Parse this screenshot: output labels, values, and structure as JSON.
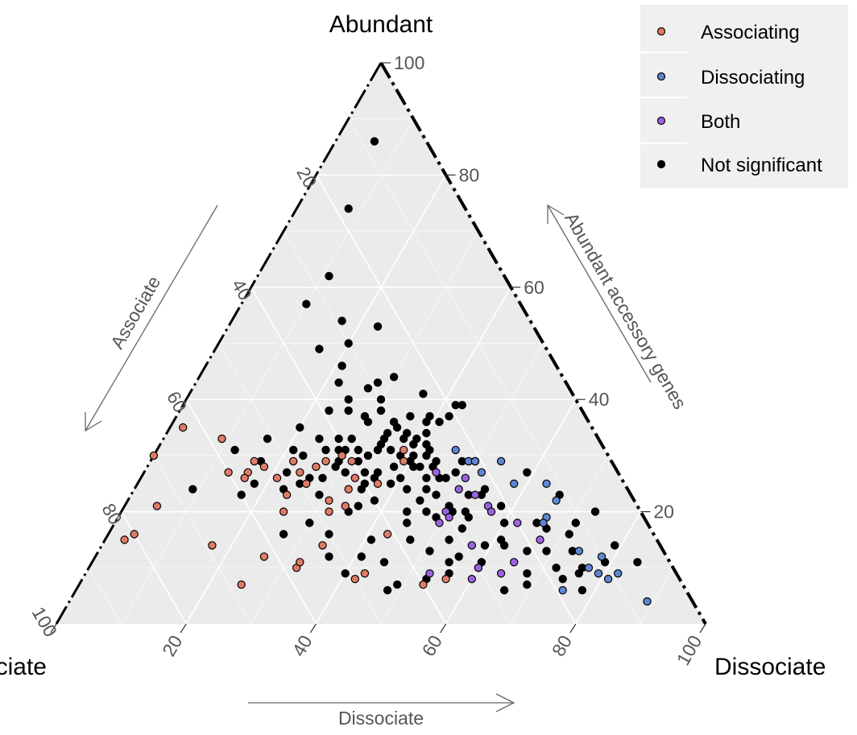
{
  "chart_data": {
    "type": "ternary-scatter",
    "vertex_labels": {
      "top": "Abundant",
      "left": "Associate",
      "right": "Dissociate"
    },
    "axis_titles": {
      "left": "Associate",
      "right": "Abundant accessory genes",
      "bottom": "Dissociate"
    },
    "ticks": [
      20,
      40,
      60,
      80,
      100
    ],
    "tick_labels": [
      "20",
      "40",
      "60",
      "80",
      "100"
    ],
    "grid": true,
    "legend": {
      "position": "top-right",
      "entries": [
        {
          "key": "associating",
          "label": "Associating",
          "color": "#e07b68"
        },
        {
          "key": "dissociating",
          "label": "Dissociating",
          "color": "#5f86d1"
        },
        {
          "key": "both",
          "label": "Both",
          "color": "#9b63e0"
        },
        {
          "key": "not_significant",
          "label": "Not significant",
          "color": "#000000"
        }
      ]
    },
    "series": [
      {
        "name": "Not significant",
        "color": "#000000",
        "points": [
          [
            86,
            8,
            6
          ],
          [
            74,
            18,
            8
          ],
          [
            62,
            27,
            11
          ],
          [
            57,
            33,
            10
          ],
          [
            54,
            29,
            17
          ],
          [
            49,
            35,
            16
          ],
          [
            50,
            30,
            20
          ],
          [
            53,
            24,
            23
          ],
          [
            46,
            33,
            21
          ],
          [
            43,
            35,
            22
          ],
          [
            43,
            29,
            28
          ],
          [
            42,
            31,
            27
          ],
          [
            44,
            26,
            30
          ],
          [
            40,
            30,
            30
          ],
          [
            38,
            36,
            26
          ],
          [
            41,
            23,
            36
          ],
          [
            39,
            18,
            43
          ],
          [
            38,
            39,
            23
          ],
          [
            39,
            19,
            42
          ],
          [
            36,
            25,
            39
          ],
          [
            40,
            35,
            25
          ],
          [
            30,
            30,
            40
          ],
          [
            37,
            34,
            29
          ],
          [
            37,
            27,
            36
          ],
          [
            34,
            32,
            34
          ],
          [
            33,
            30,
            37
          ],
          [
            32,
            27,
            41
          ],
          [
            33,
            40,
            27
          ],
          [
            38,
            31,
            31
          ],
          [
            37,
            24,
            39
          ],
          [
            37,
            21,
            42
          ],
          [
            31,
            41,
            28
          ],
          [
            35,
            45,
            20
          ],
          [
            33,
            43,
            24
          ],
          [
            28,
            43,
            29
          ],
          [
            33,
            33,
            34
          ],
          [
            29,
            42,
            29
          ],
          [
            21,
            43,
            36
          ],
          [
            27,
            39,
            34
          ],
          [
            25,
            36,
            39
          ],
          [
            30,
            37,
            33
          ],
          [
            36,
            30,
            34
          ],
          [
            25,
            50,
            25
          ],
          [
            24,
            41,
            35
          ],
          [
            31,
            48,
            21
          ],
          [
            31,
            33,
            36
          ],
          [
            36,
            34,
            30
          ],
          [
            26,
            30,
            44
          ],
          [
            26,
            34,
            40
          ],
          [
            22,
            40,
            38
          ],
          [
            28,
            31,
            41
          ],
          [
            27,
            37,
            36
          ],
          [
            30,
            32,
            38
          ],
          [
            24,
            34,
            42
          ],
          [
            19,
            32,
            49
          ],
          [
            20,
            36,
            44
          ],
          [
            23,
            25,
            52
          ],
          [
            21,
            29,
            50
          ],
          [
            19,
            27,
            54
          ],
          [
            23,
            23,
            54
          ],
          [
            24,
            22,
            54
          ],
          [
            27,
            25,
            48
          ],
          [
            29,
            27,
            44
          ],
          [
            29,
            23,
            48
          ],
          [
            32,
            29,
            39
          ],
          [
            26,
            46,
            28
          ],
          [
            28,
            34,
            38
          ],
          [
            30,
            28,
            42
          ],
          [
            27,
            42,
            31
          ],
          [
            30,
            47,
            23
          ],
          [
            33,
            51,
            16
          ],
          [
            29,
            54,
            17
          ],
          [
            31,
            57,
            12
          ],
          [
            25,
            57,
            18
          ],
          [
            24,
            67,
            9
          ],
          [
            23,
            60,
            17
          ],
          [
            18,
            52,
            30
          ],
          [
            20,
            45,
            35
          ],
          [
            15,
            44,
            41
          ],
          [
            12,
            47,
            41
          ],
          [
            16,
            50,
            34
          ],
          [
            16,
            57,
            27
          ],
          [
            12,
            52,
            36
          ],
          [
            11,
            44,
            45
          ],
          [
            15,
            38,
            47
          ],
          [
            13,
            36,
            51
          ],
          [
            15,
            32,
            53
          ],
          [
            11,
            34,
            55
          ],
          [
            18,
            37,
            45
          ],
          [
            20,
            33,
            47
          ],
          [
            17,
            29,
            54
          ],
          [
            14,
            24,
            62
          ],
          [
            13,
            21,
            66
          ],
          [
            11,
            29,
            60
          ],
          [
            10,
            30,
            60
          ],
          [
            9,
            23,
            68
          ],
          [
            10,
            18,
            72
          ],
          [
            13,
            14,
            73
          ],
          [
            9,
            15,
            76
          ],
          [
            16,
            13,
            71
          ],
          [
            17,
            16,
            67
          ],
          [
            13,
            18,
            69
          ],
          [
            12,
            32,
            56
          ],
          [
            8,
            39,
            53
          ],
          [
            7,
            44,
            49
          ],
          [
            9,
            35,
            56
          ],
          [
            6,
            46,
            48
          ],
          [
            6,
            28,
            66
          ],
          [
            7,
            24,
            69
          ],
          [
            8,
            18,
            74
          ],
          [
            10,
            14,
            76
          ],
          [
            6,
            16,
            78
          ],
          [
            14,
            27,
            59
          ],
          [
            15,
            24,
            61
          ],
          [
            20,
            27,
            53
          ],
          [
            18,
            22,
            60
          ],
          [
            21,
            21,
            58
          ],
          [
            18,
            17,
            65
          ],
          [
            18,
            11,
            71
          ],
          [
            11,
            10,
            79
          ],
          [
            14,
            7,
            79
          ],
          [
            20,
            7,
            73
          ],
          [
            11,
            5,
            84
          ],
          [
            23,
            11,
            66
          ],
          [
            27,
            14,
            59
          ],
          [
            9,
            51,
            40
          ],
          [
            27,
            51,
            22
          ],
          [
            22,
            33,
            45
          ],
          [
            26,
            28,
            46
          ],
          [
            28,
            28,
            44
          ],
          [
            31,
            27,
            42
          ],
          [
            34,
            26,
            40
          ],
          [
            36,
            23,
            41
          ],
          [
            26,
            27,
            47
          ],
          [
            20,
            29,
            51
          ],
          [
            23,
            30,
            47
          ],
          [
            31,
            38,
            31
          ],
          [
            31,
            40,
            29
          ],
          [
            33,
            38,
            29
          ],
          [
            26,
            38,
            36
          ],
          [
            25,
            40,
            35
          ],
          [
            29,
            39,
            32
          ],
          [
            31,
            35,
            34
          ],
          [
            32,
            34,
            34
          ],
          [
            26,
            48,
            26
          ],
          [
            23,
            48,
            29
          ],
          [
            24,
            53,
            23
          ],
          [
            31,
            43,
            26
          ],
          [
            35,
            30,
            35
          ],
          [
            28,
            30,
            42
          ],
          [
            24,
            31,
            45
          ],
          [
            29,
            31,
            40
          ],
          [
            34,
            29,
            37
          ],
          [
            33,
            28,
            39
          ]
        ]
      },
      {
        "name": "Associating",
        "color": "#e07b68",
        "points": [
          [
            27,
            60,
            13
          ],
          [
            28,
            54,
            18
          ],
          [
            27,
            57,
            16
          ],
          [
            26,
            58,
            16
          ],
          [
            29,
            55,
            16
          ],
          [
            26,
            53,
            21
          ],
          [
            29,
            49,
            22
          ],
          [
            27,
            49,
            24
          ],
          [
            28,
            46,
            26
          ],
          [
            29,
            44,
            27
          ],
          [
            30,
            41,
            29
          ],
          [
            29,
            40,
            31
          ],
          [
            25,
            49,
            26
          ],
          [
            23,
            53,
            24
          ],
          [
            20,
            55,
            25
          ],
          [
            20,
            48,
            32
          ],
          [
            22,
            47,
            31
          ],
          [
            21,
            45,
            34
          ],
          [
            24,
            43,
            33
          ],
          [
            26,
            41,
            33
          ],
          [
            25,
            38,
            37
          ],
          [
            31,
            31,
            38
          ],
          [
            29,
            32,
            39
          ],
          [
            14,
            52,
            34
          ],
          [
            10,
            58,
            32
          ],
          [
            12,
            62,
            26
          ],
          [
            7,
            68,
            25
          ],
          [
            8,
            50,
            42
          ],
          [
            9,
            48,
            43
          ],
          [
            7,
            40,
            53
          ],
          [
            8,
            36,
            56
          ],
          [
            30,
            70,
            0
          ],
          [
            21,
            74,
            5
          ],
          [
            16,
            80,
            4
          ],
          [
            15,
            82,
            3
          ],
          [
            35,
            63,
            2
          ],
          [
            33,
            58,
            9
          ],
          [
            14,
            69,
            17
          ],
          [
            11,
            57,
            32
          ],
          [
            16,
            41,
            43
          ]
        ]
      },
      {
        "name": "Dissociating",
        "color": "#5f86d1",
        "points": [
          [
            31,
            23,
            46
          ],
          [
            29,
            21,
            50
          ],
          [
            29,
            21,
            50
          ],
          [
            29,
            22,
            49
          ],
          [
            29,
            22,
            49
          ],
          [
            29,
            21,
            50
          ],
          [
            27,
            21,
            52
          ],
          [
            25,
            17,
            58
          ],
          [
            29,
            17,
            54
          ],
          [
            22,
            12,
            66
          ],
          [
            25,
            12,
            63
          ],
          [
            19,
            15,
            66
          ],
          [
            13,
            13,
            74
          ],
          [
            12,
            10,
            78
          ],
          [
            10,
            13,
            77
          ],
          [
            8,
            11,
            81
          ],
          [
            9,
            9,
            82
          ],
          [
            9,
            12,
            79
          ],
          [
            6,
            19,
            75
          ],
          [
            4,
            7,
            89
          ],
          [
            18,
            16,
            66
          ]
        ]
      },
      {
        "name": "Both",
        "color": "#9b63e0",
        "points": [
          [
            27,
            28,
            45
          ],
          [
            26,
            24,
            50
          ],
          [
            24,
            26,
            50
          ],
          [
            23,
            24,
            53
          ],
          [
            21,
            23,
            56
          ],
          [
            20,
            23,
            57
          ],
          [
            18,
            20,
            62
          ],
          [
            15,
            18,
            67
          ],
          [
            14,
            29,
            57
          ],
          [
            18,
            32,
            50
          ],
          [
            20,
            30,
            50
          ],
          [
            19,
            30,
            51
          ],
          [
            11,
            24,
            65
          ],
          [
            9,
            27,
            64
          ],
          [
            10,
            30,
            60
          ],
          [
            8,
            32,
            60
          ],
          [
            9,
            38,
            53
          ]
        ]
      }
    ]
  }
}
